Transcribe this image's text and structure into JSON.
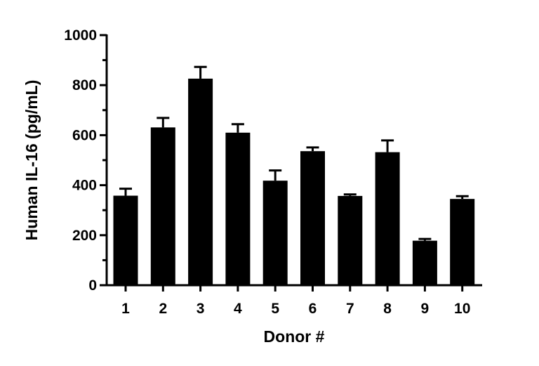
{
  "chart_data": {
    "type": "bar",
    "title": "",
    "xlabel": "Donor #",
    "ylabel": "Human IL-16 (pg/mL)",
    "ylim": [
      0,
      1000
    ],
    "yticks": [
      0,
      200,
      400,
      600,
      800,
      1000
    ],
    "grid": false,
    "categories": [
      "1",
      "2",
      "3",
      "4",
      "5",
      "6",
      "7",
      "8",
      "9",
      "10"
    ],
    "values": [
      358,
      631,
      826,
      610,
      418,
      536,
      357,
      532,
      178,
      345
    ],
    "error": [
      28,
      38,
      47,
      34,
      41,
      15,
      6,
      47,
      7,
      11
    ],
    "bar_color": "#000000"
  }
}
